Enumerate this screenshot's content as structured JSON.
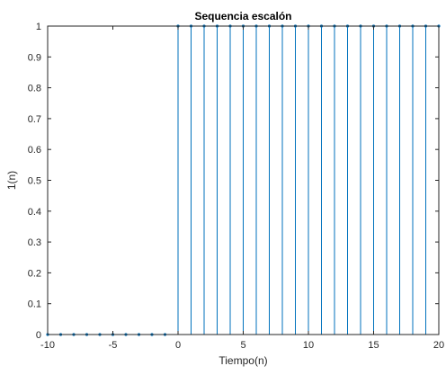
{
  "chart_data": {
    "type": "stem",
    "title": "Sequencia escalón",
    "xlabel": "Tiempo(n)",
    "ylabel": "1(n)",
    "xlim": [
      -10,
      20
    ],
    "ylim": [
      0,
      1
    ],
    "grid": false,
    "x_ticks": [
      "-10",
      "-5",
      "0",
      "5",
      "10",
      "15",
      "20"
    ],
    "x_tick_values": [
      -10,
      -5,
      0,
      5,
      10,
      15,
      20
    ],
    "y_ticks": [
      "0",
      "0.1",
      "0.2",
      "0.3",
      "0.4",
      "0.5",
      "0.6",
      "0.7",
      "0.8",
      "0.9",
      "1"
    ],
    "y_tick_values": [
      0,
      0.1,
      0.2,
      0.3,
      0.4,
      0.5,
      0.6,
      0.7,
      0.8,
      0.9,
      1
    ],
    "series": [
      {
        "x": [
          -10,
          -9,
          -8,
          -7,
          -6,
          -5,
          -4,
          -3,
          -2,
          -1,
          0,
          1,
          2,
          3,
          4,
          5,
          6,
          7,
          8,
          9,
          10,
          11,
          12,
          13,
          14,
          15,
          16,
          17,
          18,
          19,
          20
        ],
        "values": [
          0,
          0,
          0,
          0,
          0,
          0,
          0,
          0,
          0,
          0,
          1,
          1,
          1,
          1,
          1,
          1,
          1,
          1,
          1,
          1,
          1,
          1,
          1,
          1,
          1,
          1,
          1,
          1,
          1,
          1,
          1
        ],
        "color": "#0072BD"
      }
    ]
  },
  "colors": {
    "stem": "#0072BD",
    "axis": "#262626",
    "background": "#ffffff"
  }
}
